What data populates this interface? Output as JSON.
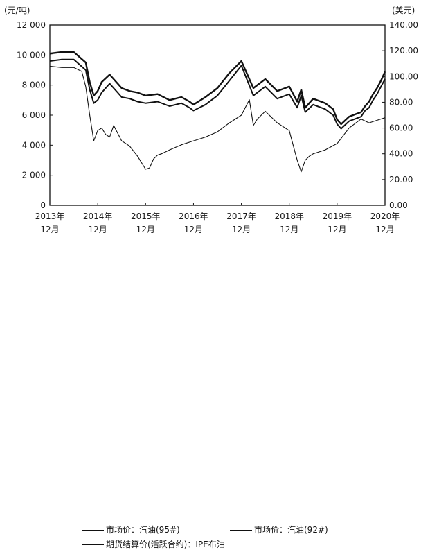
{
  "chart_data": {
    "type": "line",
    "left_axis_unit": "(元/吨)",
    "right_axis_unit": "(美元)",
    "left_yticks": [
      "0",
      "2 000",
      "4 000",
      "6 000",
      "8 000",
      "10 000",
      "12 000"
    ],
    "right_yticks": [
      "0.00",
      "20.00",
      "40.00",
      "60.00",
      "80.00",
      "100.00",
      "120.00",
      "140.00"
    ],
    "ylim_left": [
      0,
      12000
    ],
    "ylim_right": [
      0,
      140
    ],
    "x_tick_labels": [
      {
        "year": "2013年",
        "month": "12月"
      },
      {
        "year": "2014年",
        "month": "12月"
      },
      {
        "year": "2015年",
        "month": "12月"
      },
      {
        "year": "2016年",
        "month": "12月"
      },
      {
        "year": "2017年",
        "month": "12月"
      },
      {
        "year": "2018年",
        "month": "12月"
      },
      {
        "year": "2019年",
        "month": "12月"
      },
      {
        "year": "2020年",
        "month": "12月"
      }
    ],
    "xlim": [
      0,
      84
    ],
    "series": [
      {
        "name": "市场价：汽油(95#)",
        "axis": "left",
        "x": [
          0,
          3,
          6,
          9,
          10,
          11,
          12,
          13,
          15,
          17,
          18,
          20,
          22,
          24,
          27,
          30,
          33,
          35,
          36,
          39,
          42,
          45,
          48,
          51,
          54,
          57,
          60,
          62,
          63,
          64,
          66,
          69,
          71,
          72,
          73,
          75,
          77,
          78,
          79,
          80,
          81,
          82,
          83,
          84
        ],
        "y": [
          10100,
          10200,
          10200,
          9500,
          8200,
          7300,
          7600,
          8200,
          8700,
          8100,
          7800,
          7600,
          7500,
          7300,
          7400,
          7000,
          7200,
          6900,
          6700,
          7200,
          7800,
          8800,
          9600,
          7800,
          8400,
          7600,
          7900,
          6900,
          7700,
          6500,
          7100,
          6800,
          6400,
          5700,
          5400,
          5900,
          6100,
          6200,
          6600,
          6900,
          7400,
          7800,
          8300,
          8900
        ]
      },
      {
        "name": "市场价：汽油(92#)",
        "axis": "left",
        "x": [
          0,
          3,
          6,
          9,
          10,
          11,
          12,
          13,
          15,
          17,
          18,
          20,
          22,
          24,
          27,
          30,
          33,
          35,
          36,
          39,
          42,
          45,
          48,
          51,
          54,
          57,
          60,
          62,
          63,
          64,
          66,
          69,
          71,
          72,
          73,
          75,
          77,
          78,
          79,
          80,
          81,
          82,
          83,
          84
        ],
        "y": [
          9600,
          9700,
          9700,
          9000,
          7700,
          6800,
          7000,
          7500,
          8100,
          7500,
          7200,
          7100,
          6900,
          6800,
          6900,
          6600,
          6800,
          6500,
          6300,
          6700,
          7300,
          8300,
          9300,
          7300,
          7900,
          7100,
          7400,
          6500,
          7300,
          6200,
          6700,
          6400,
          6000,
          5400,
          5100,
          5600,
          5800,
          5900,
          6300,
          6500,
          7000,
          7400,
          7900,
          8400
        ]
      },
      {
        "name": "期货结算价(活跃合约)：IPE布油",
        "axis": "right",
        "x": [
          0,
          3,
          6,
          8,
          9,
          10,
          11,
          12,
          13,
          14,
          15,
          16,
          18,
          20,
          22,
          24,
          25,
          26,
          27,
          28,
          30,
          33,
          36,
          39,
          42,
          45,
          48,
          50,
          51,
          52,
          54,
          57,
          60,
          62,
          63,
          64,
          65,
          66,
          67,
          69,
          72,
          75,
          78,
          80,
          82,
          84
        ],
        "y": [
          108,
          107,
          107,
          104,
          92,
          70,
          50,
          58,
          60,
          55,
          53,
          62,
          50,
          46,
          38,
          28,
          29,
          36,
          39,
          40,
          43,
          47,
          50,
          53,
          57,
          64,
          70,
          82,
          62,
          67,
          73,
          64,
          58,
          35,
          26,
          35,
          38,
          40,
          41,
          43,
          48,
          60,
          67,
          64,
          66,
          68
        ]
      }
    ],
    "legend": [
      {
        "label": "市场价：汽油(95#)",
        "style": "thick"
      },
      {
        "label": "市场价：汽油(92#)",
        "style": "thick"
      },
      {
        "label": "期货结算价(活跃合约)：IPE布油",
        "style": "thin"
      }
    ],
    "legend_placement": "bottom",
    "grid": false
  }
}
